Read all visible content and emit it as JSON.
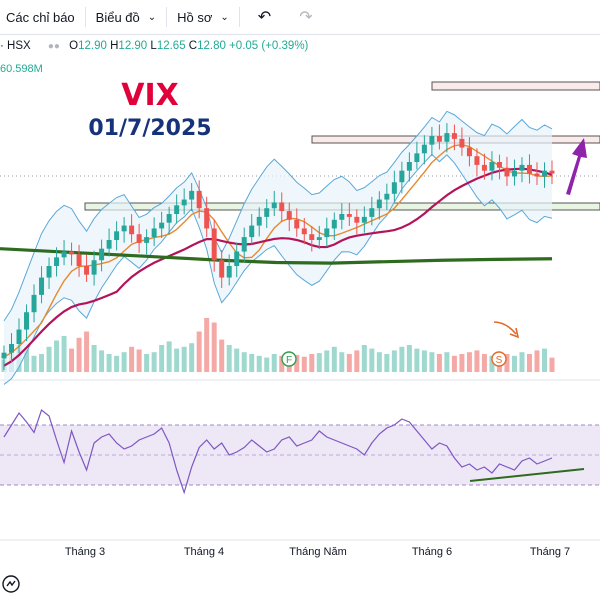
{
  "toolbar": {
    "indicators": "Các chỉ báo",
    "chart": "Biểu đồ",
    "profile": "Hồ sơ"
  },
  "legend": {
    "symbol": "· HSX",
    "open_k": "O",
    "open": "12.90",
    "high_k": "H",
    "high": "12.90",
    "low_k": "L",
    "low": "12.65",
    "close_k": "C",
    "close": "12.80",
    "change": "+0.05 (+0.39%)",
    "volume": "60.598M"
  },
  "annotation": {
    "title": "VIX",
    "date": "01/7/2025"
  },
  "markers": {
    "f": "F",
    "s": "S"
  },
  "colors": {
    "up": "#26a69a",
    "down": "#ef5350",
    "ma_short": "#e68a2e",
    "ma_mid": "#b2145a",
    "ma_long": "#2e6b1f",
    "bollinger": "#5aa8d8",
    "rsi_line": "#7e57c2",
    "rsi_band": "#ede7f6",
    "arrow": "#8e24aa",
    "small_arrow": "#e06a2a"
  },
  "chart_data": {
    "type": "candlestick",
    "x_ticks": [
      "Tháng 3",
      "Tháng 4",
      "Tháng Năm",
      "Tháng 6",
      "Tháng 7"
    ],
    "last": {
      "open": 12.9,
      "high": 12.9,
      "low": 12.65,
      "close": 12.8
    },
    "price_path": [
      6.6,
      6.9,
      7.4,
      8.0,
      8.6,
      9.2,
      9.6,
      9.9,
      10.1,
      10.0,
      9.6,
      9.3,
      9.8,
      10.2,
      10.5,
      10.8,
      11.0,
      10.7,
      10.4,
      10.6,
      10.9,
      11.1,
      11.4,
      11.7,
      11.9,
      12.2,
      11.6,
      10.9,
      9.8,
      9.2,
      9.6,
      10.1,
      10.6,
      11.0,
      11.3,
      11.6,
      11.8,
      11.5,
      11.2,
      10.9,
      10.7,
      10.5,
      10.6,
      10.9,
      11.2,
      11.4,
      11.3,
      11.1,
      11.3,
      11.6,
      11.9,
      12.1,
      12.5,
      12.9,
      13.2,
      13.5,
      13.8,
      14.1,
      13.9,
      14.2,
      14.0,
      13.7,
      13.4,
      13.1,
      12.9,
      13.2,
      13.0,
      12.7,
      12.9,
      13.1,
      12.8,
      12.7,
      12.9,
      12.8
    ],
    "volume_path": [
      14,
      22,
      30,
      25,
      18,
      20,
      28,
      35,
      40,
      26,
      38,
      45,
      30,
      24,
      20,
      18,
      22,
      28,
      25,
      20,
      22,
      30,
      34,
      26,
      28,
      32,
      45,
      60,
      55,
      36,
      30,
      26,
      22,
      20,
      18,
      16,
      20,
      18,
      22,
      19,
      17,
      20,
      21,
      24,
      28,
      22,
      20,
      24,
      30,
      26,
      22,
      20,
      24,
      28,
      30,
      26,
      24,
      22,
      20,
      22,
      18,
      20,
      22,
      24,
      20,
      18,
      22,
      20,
      18,
      22,
      20,
      24,
      26,
      16
    ],
    "rsi_path": [
      62,
      70,
      78,
      72,
      65,
      80,
      76,
      60,
      45,
      66,
      52,
      40,
      58,
      62,
      64,
      58,
      54,
      56,
      60,
      62,
      64,
      68,
      58,
      40,
      25,
      42,
      55,
      60,
      54,
      58,
      50,
      52,
      55,
      60,
      56,
      52,
      54,
      60,
      62,
      56,
      58,
      60,
      66,
      62,
      60,
      58,
      56,
      54,
      50,
      58,
      64,
      68,
      70,
      74,
      72,
      66,
      60,
      54,
      58,
      56,
      48,
      42,
      44,
      40,
      42,
      38,
      44,
      42,
      40,
      46,
      48,
      44,
      46,
      48
    ],
    "ma_long_path": [
      10.2,
      10.1,
      10.0,
      9.9,
      9.8,
      9.72,
      9.7,
      9.75,
      9.8,
      9.83,
      9.85
    ]
  }
}
